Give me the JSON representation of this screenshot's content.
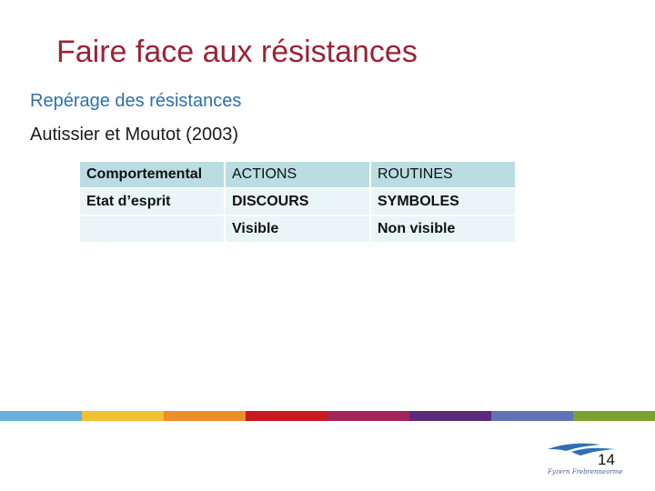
{
  "slide": {
    "title": "Faire face aux résistances",
    "subtitle": "Repérage des résistances",
    "reference": "Autissier et Moutot (2003)",
    "page_number": "14",
    "logo_text": "Fyzern Frebrenneorme"
  },
  "table": {
    "rows": [
      [
        "Comportemental",
        "ACTIONS",
        "ROUTINES"
      ],
      [
        "Etat d’esprit",
        "DISCOURS",
        "SYMBOLES"
      ],
      [
        "",
        "Visible",
        "Non visible"
      ]
    ]
  },
  "band_colors": [
    "#6aaede",
    "#f2c232",
    "#ea8f2a",
    "#c81a1f",
    "#a3245a",
    "#5b2a7e",
    "#6272b4",
    "#7aa232"
  ]
}
